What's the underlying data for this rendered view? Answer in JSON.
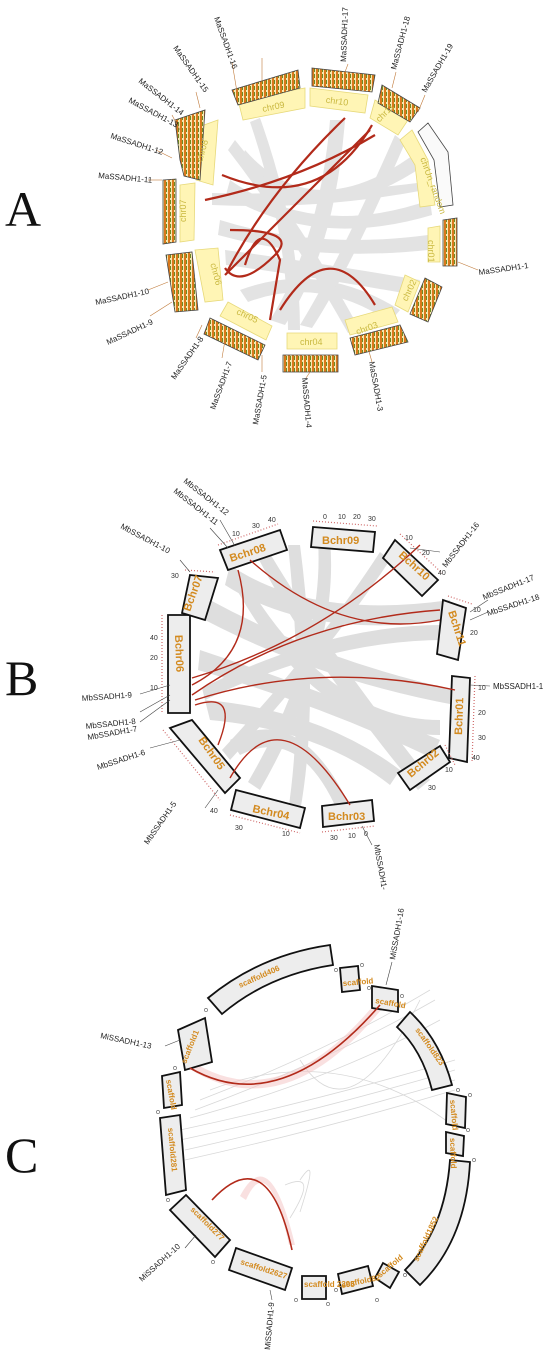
{
  "panels": [
    {
      "letter": "A",
      "chromosomes": [
        {
          "label": "chr01"
        },
        {
          "label": "chr02"
        },
        {
          "label": "chr03"
        },
        {
          "label": "chr04"
        },
        {
          "label": "chr05"
        },
        {
          "label": "chr06"
        },
        {
          "label": "chr07"
        },
        {
          "label": "chr08"
        },
        {
          "label": "chr09"
        },
        {
          "label": "chr10"
        },
        {
          "label": "chr11"
        },
        {
          "label": "chrUn_random"
        }
      ],
      "genes": [
        {
          "label": "MaSSADH1-1"
        },
        {
          "label": "MaSSADH1-3"
        },
        {
          "label": "MaSSADH1-4"
        },
        {
          "label": "MaSSADH1-5"
        },
        {
          "label": "MaSSADH1-7"
        },
        {
          "label": "MaSSADH1-8"
        },
        {
          "label": "MaSSADH1-9"
        },
        {
          "label": "MaSSADH1-10"
        },
        {
          "label": "MaSSADH1-11"
        },
        {
          "label": "MaSSADH1-12"
        },
        {
          "label": "MaSSADH1-13"
        },
        {
          "label": "MaSSADH1-14"
        },
        {
          "label": "MaSSADH1-15"
        },
        {
          "label": "MaSSADH1-16"
        },
        {
          "label": "MaSSADH1-17"
        },
        {
          "label": "MaSSADH1-18"
        },
        {
          "label": "MaSSADH1-19"
        }
      ]
    },
    {
      "letter": "B",
      "chromosomes": [
        {
          "label": "Bchr01"
        },
        {
          "label": "Bchr02"
        },
        {
          "label": "Bchr03"
        },
        {
          "label": "Bchr04"
        },
        {
          "label": "Bchr05"
        },
        {
          "label": "Bchr06"
        },
        {
          "label": "Bchr07"
        },
        {
          "label": "Bchr08"
        },
        {
          "label": "Bchr09"
        },
        {
          "label": "Bchr10"
        },
        {
          "label": "Bchr11"
        }
      ],
      "genes": [
        {
          "label": "MbSSADH1-1"
        },
        {
          "label": "MbSSADH1-"
        },
        {
          "label": "MbSSADH1-5"
        },
        {
          "label": "MbSSADH1-6"
        },
        {
          "label": "MbSSADH1-7"
        },
        {
          "label": "MbSSADH1-8"
        },
        {
          "label": "MbSSADH1-9"
        },
        {
          "label": "MbSSADH1-10"
        },
        {
          "label": "MbSSADH1-11"
        },
        {
          "label": "MbSSADH1-12"
        },
        {
          "label": "MbSSADH1-16"
        },
        {
          "label": "MbSSADH1-17"
        },
        {
          "label": "MbSSADH1-18"
        }
      ]
    },
    {
      "letter": "C",
      "chromosomes": [
        {
          "label": "scaffold406"
        },
        {
          "label": "scaffold"
        },
        {
          "label": "scaffold"
        },
        {
          "label": "scaffold823"
        },
        {
          "label": "scaffold"
        },
        {
          "label": "scaffold"
        },
        {
          "label": "scaffold1852"
        },
        {
          "label": "scaffold"
        },
        {
          "label": "scaffold82"
        },
        {
          "label": "scaffold 2395"
        },
        {
          "label": "scaffold2627"
        },
        {
          "label": "scaffold277"
        },
        {
          "label": "scaffold281"
        },
        {
          "label": "scaffold"
        },
        {
          "label": "scaffold1"
        }
      ],
      "genes": [
        {
          "label": "MiSSADH1-16"
        },
        {
          "label": "MiSSADH1-13"
        },
        {
          "label": "MiSSADH1-10"
        },
        {
          "label": "MiSSADH1-9"
        }
      ]
    }
  ],
  "colors": {
    "link": "#b22a1a",
    "chr_fill_A": "#fff5b5",
    "chr_fill": "#eeeeee",
    "label_orange": "#d38a1f",
    "density": "#d9791c",
    "gray_links": "#d9d9d9"
  }
}
